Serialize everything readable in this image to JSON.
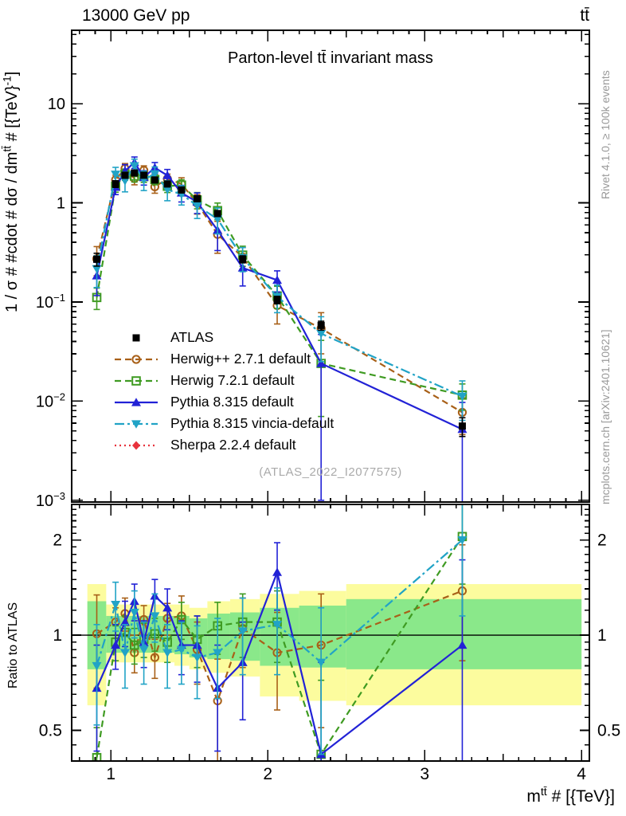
{
  "header": {
    "left": "13000 GeV pp",
    "right": "tt̄"
  },
  "plot": {
    "title": "Parton-level tt̄ invariant mass",
    "watermark": "(ATLAS_2022_I2077575)"
  },
  "side_notes": {
    "top_right": "Rivet 4.1.0, ≥ 100k events",
    "bottom_right": "mcplots.cern.ch [arXiv:2401.10621]"
  },
  "axes": {
    "y_main_label": {
      "pre": "1 / σ # #cdot # dσ / dm",
      "sup1": "tt̄",
      "mid": " # [{TeV}",
      "sup2": "-1",
      "post": "]"
    },
    "x_label": {
      "pre": "m",
      "sup": "tt̄",
      "post": " # [{TeV}]"
    },
    "ratio_label": "Ratio to ATLAS",
    "x_ticks": [
      {
        "value": 1,
        "label": "1"
      },
      {
        "value": 2,
        "label": "2"
      },
      {
        "value": 3,
        "label": "3"
      },
      {
        "value": 4,
        "label": "4"
      }
    ],
    "y_main_ticks": [
      {
        "value": 10,
        "base": "10",
        "exp": ""
      },
      {
        "value": 1,
        "base": "1",
        "exp": ""
      },
      {
        "value": 0.1,
        "base": "10",
        "exp": "−1"
      },
      {
        "value": 0.01,
        "base": "10",
        "exp": "−2"
      },
      {
        "value": 0.001,
        "base": "10",
        "exp": "−3"
      }
    ],
    "ratio_ticks": [
      {
        "value": 2,
        "label": "2"
      },
      {
        "value": 1,
        "label": "1"
      },
      {
        "value": 0.5,
        "label": "0.5"
      }
    ]
  },
  "chart_data": {
    "type": "line",
    "title": "Parton-level tt invariant mass, 13000 GeV pp",
    "xlabel": "m^tt [TeV]",
    "ylabel": "1/sigma dsigma/dm^tt [1/TeV]",
    "ratio_ylabel": "Ratio to ATLAS",
    "xlim": [
      0.75,
      4.05
    ],
    "main_ylim": [
      0.00096,
      55
    ],
    "ratio_ylim": [
      0.4,
      2.59
    ],
    "ylog": true,
    "grid": false,
    "legend_position": "middle-left",
    "x": [
      0.91,
      1.03,
      1.09,
      1.15,
      1.21,
      1.28,
      1.36,
      1.45,
      1.55,
      1.68,
      1.84,
      2.06,
      2.34,
      3.24
    ],
    "bin_edges": [
      0.85,
      0.97,
      1.06,
      1.12,
      1.18,
      1.245,
      1.32,
      1.405,
      1.5,
      1.615,
      1.76,
      1.95,
      2.2,
      2.5,
      4.0
    ],
    "series": [
      {
        "name": "ATLAS",
        "color": "#000000",
        "marker": "square-filled",
        "line": "none",
        "values": [
          0.27,
          1.55,
          1.9,
          2.0,
          1.9,
          1.7,
          1.55,
          1.35,
          1.1,
          0.78,
          0.27,
          0.105,
          0.058,
          0.0056
        ],
        "errors": [
          0.04,
          0.12,
          0.13,
          0.13,
          0.12,
          0.11,
          0.1,
          0.09,
          0.07,
          0.05,
          0.022,
          0.009,
          0.006,
          0.0012
        ],
        "ratio": null,
        "ratio_err": null
      },
      {
        "name": "Herwig++ 2.7.1 default",
        "color": "#a86018",
        "marker": "circle-open",
        "line": "dashed",
        "values": [
          0.273,
          1.71,
          2.22,
          1.76,
          2.13,
          1.45,
          1.75,
          1.55,
          0.99,
          0.48,
          0.284,
          0.092,
          0.054,
          0.0077
        ],
        "errors": [
          0.089,
          0.19,
          0.27,
          0.24,
          0.23,
          0.2,
          0.2,
          0.24,
          0.22,
          0.17,
          0.07,
          0.032,
          0.024,
          0.0031
        ],
        "ratio": [
          1.01,
          1.1,
          1.17,
          0.88,
          1.12,
          0.85,
          1.13,
          1.15,
          0.9,
          0.62,
          1.05,
          0.88,
          0.93,
          1.38
        ],
        "ratio_err": [
          0.33,
          0.12,
          0.14,
          0.12,
          0.12,
          0.12,
          0.13,
          0.18,
          0.2,
          0.22,
          0.26,
          0.3,
          0.42,
          0.55
        ]
      },
      {
        "name": "Herwig 7.2.1 default",
        "color": "#3f9b22",
        "marker": "square-open",
        "line": "dashed",
        "values": [
          0.111,
          1.47,
          1.94,
          1.86,
          1.84,
          1.72,
          1.47,
          1.51,
          1.07,
          0.835,
          0.297,
          0.115,
          0.024,
          0.0115
        ],
        "errors": [
          0.027,
          0.19,
          0.25,
          0.24,
          0.23,
          0.2,
          0.2,
          0.2,
          0.2,
          0.16,
          0.068,
          0.029,
          0.017,
          0.0034
        ],
        "ratio": [
          0.41,
          0.95,
          1.02,
          0.93,
          0.97,
          1.01,
          0.95,
          1.12,
          0.97,
          1.07,
          1.1,
          1.1,
          0.42,
          2.05
        ],
        "ratio_err": [
          0.1,
          0.12,
          0.13,
          0.12,
          0.12,
          0.12,
          0.13,
          0.15,
          0.18,
          0.2,
          0.25,
          0.28,
          0.3,
          0.6
        ]
      },
      {
        "name": "Pythia 8.315 default",
        "color": "#2222d6",
        "marker": "triangle-up-filled",
        "line": "solid",
        "values": [
          0.184,
          1.44,
          2.09,
          2.56,
          1.81,
          2.26,
          1.89,
          1.26,
          1.02,
          0.53,
          0.221,
          0.166,
          0.024,
          0.0052
        ],
        "errors": [
          0.068,
          0.23,
          0.34,
          0.34,
          0.3,
          0.29,
          0.28,
          0.24,
          0.24,
          0.2,
          0.076,
          0.04,
          0.023,
          0.0045
        ],
        "ratio": [
          0.68,
          0.93,
          1.1,
          1.28,
          0.95,
          1.33,
          1.22,
          0.93,
          0.93,
          0.68,
          0.82,
          1.58,
          0.42,
          0.93
        ],
        "ratio_err": [
          0.25,
          0.15,
          0.18,
          0.17,
          0.16,
          0.17,
          0.18,
          0.18,
          0.22,
          0.25,
          0.28,
          0.38,
          0.4,
          0.8
        ]
      },
      {
        "name": "Pythia 8.315 vincia-default",
        "color": "#21a3c6",
        "marker": "triangle-down-filled",
        "line": "dashdot",
        "values": [
          0.216,
          1.94,
          1.67,
          2.36,
          1.71,
          1.96,
          1.36,
          1.22,
          0.935,
          0.686,
          0.278,
          0.113,
          0.048,
          0.0112
        ],
        "errors": [
          0.076,
          0.34,
          0.38,
          0.4,
          0.38,
          0.34,
          0.31,
          0.27,
          0.24,
          0.2,
          0.076,
          0.035,
          0.023,
          0.0048
        ],
        "ratio": [
          0.8,
          1.25,
          0.88,
          1.18,
          0.9,
          1.15,
          0.88,
          0.9,
          0.85,
          0.88,
          1.03,
          1.08,
          0.82,
          2.0
        ],
        "ratio_err": [
          0.28,
          0.22,
          0.2,
          0.2,
          0.2,
          0.2,
          0.2,
          0.2,
          0.22,
          0.25,
          0.28,
          0.33,
          0.4,
          0.85
        ]
      },
      {
        "name": "Sherpa 2.2.4 default",
        "color": "#e8323c",
        "marker": "diamond-filled",
        "line": "dotted",
        "values": [],
        "errors": [],
        "ratio": [],
        "ratio_err": []
      }
    ],
    "bands": {
      "colors": {
        "outer": "#fcfc9e",
        "inner": "#8ae88a"
      },
      "yellow_lo": [
        0.6,
        0.82,
        0.82,
        0.82,
        0.82,
        0.82,
        0.82,
        0.8,
        0.78,
        0.76,
        0.74,
        0.64,
        0.62,
        0.6
      ],
      "yellow_hi": [
        1.45,
        1.25,
        1.25,
        1.25,
        1.25,
        1.25,
        1.25,
        1.25,
        1.22,
        1.28,
        1.3,
        1.35,
        1.38,
        1.45
      ],
      "green_lo": [
        0.78,
        0.88,
        0.88,
        0.88,
        0.88,
        0.88,
        0.88,
        0.87,
        0.85,
        0.84,
        0.83,
        0.8,
        0.79,
        0.78
      ],
      "green_hi": [
        1.28,
        1.15,
        1.15,
        1.15,
        1.15,
        1.15,
        1.15,
        1.15,
        1.13,
        1.17,
        1.18,
        1.22,
        1.24,
        1.3
      ]
    },
    "reference_line": 1
  }
}
